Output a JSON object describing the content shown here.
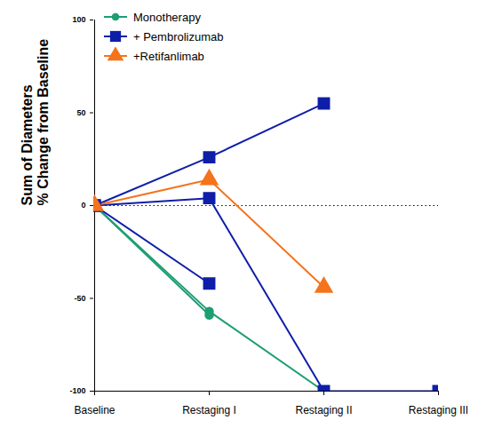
{
  "chart_data": {
    "type": "line",
    "y_label": "Sum of Diameters\n% Change from Baseline",
    "categories": [
      "Baseline",
      "Restaging I",
      "Restaging II",
      "Restaging III"
    ],
    "ylim": [
      -100,
      100
    ],
    "yticks": [
      -100,
      -50,
      0,
      50,
      100
    ],
    "hline": 0,
    "legend": "top-left",
    "series": [
      {
        "name": "Monotherapy",
        "color": "#1e9e73",
        "marker": "circle",
        "values": [
          0,
          -57,
          -100,
          null
        ]
      },
      {
        "name": "Monotherapy",
        "color": "#1e9e73",
        "marker": "circle",
        "values": [
          0,
          -59,
          null,
          null
        ]
      },
      {
        "name": "+ Pembrolizumab",
        "color": "#0f1ea8",
        "marker": "square",
        "values": [
          0,
          26,
          55,
          null
        ]
      },
      {
        "name": "+ Pembrolizumab",
        "color": "#0f1ea8",
        "marker": "square",
        "values": [
          0,
          4,
          -100,
          -100
        ]
      },
      {
        "name": "+ Pembrolizumab",
        "color": "#0f1ea8",
        "marker": "square",
        "values": [
          0,
          -42,
          null,
          null
        ]
      },
      {
        "name": "+Retifanlimab",
        "color": "#f5731b",
        "marker": "triangle",
        "values": [
          0,
          14,
          -44,
          null
        ]
      }
    ]
  }
}
